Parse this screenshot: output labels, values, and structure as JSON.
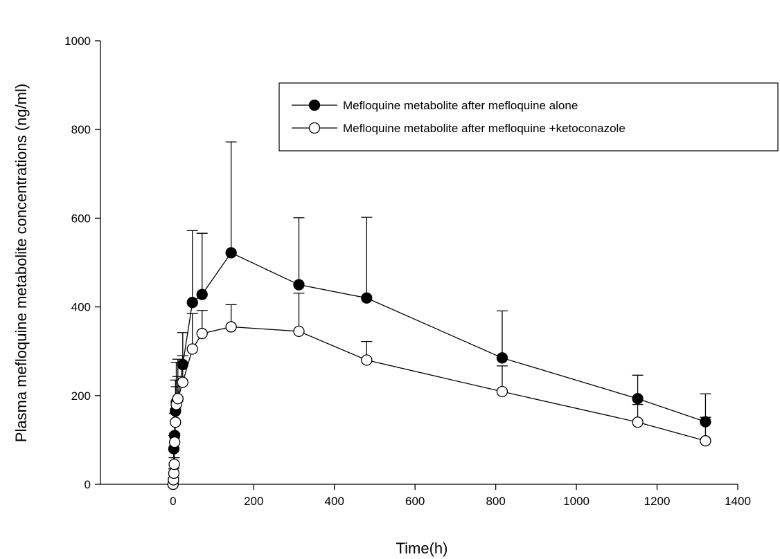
{
  "chart_data": {
    "type": "line",
    "x_label": "Time(h)",
    "y_label": "Plasma mefloquine metabolite concentrations (ng/ml)",
    "xlim": [
      -180,
      1400
    ],
    "xticks": [
      0,
      200,
      400,
      600,
      800,
      1000,
      1200,
      1400
    ],
    "ylim": [
      0,
      1000
    ],
    "yticks": [
      0,
      200,
      400,
      600,
      800,
      1000
    ],
    "legend": "upper right",
    "series": [
      {
        "name": "Mefloquine metabolite after mefloquine alone",
        "color": "#000000",
        "marker": "filled",
        "x": [
          0,
          2,
          4,
          6,
          8,
          12,
          24,
          48,
          72,
          144,
          312,
          480,
          816,
          1152,
          1320
        ],
        "values": [
          0,
          80,
          110,
          165,
          185,
          192,
          270,
          410,
          428,
          522,
          450,
          420,
          285,
          193,
          141
        ],
        "errors": [
          0,
          30,
          50,
          70,
          90,
          90,
          72,
          162,
          138,
          250,
          151,
          182,
          106,
          53,
          63
        ]
      },
      {
        "name": "Mefloquine metabolite after mefloquine +ketoconazole",
        "color": "#000000",
        "marker": "open",
        "x": [
          0,
          1,
          2,
          3,
          4,
          6,
          8,
          12,
          24,
          48,
          72,
          144,
          312,
          480,
          816,
          1152,
          1320
        ],
        "values": [
          0,
          10,
          25,
          45,
          95,
          140,
          180,
          193,
          230,
          305,
          340,
          355,
          345,
          280,
          209,
          140,
          98
        ],
        "errors": [
          0,
          5,
          10,
          15,
          20,
          30,
          40,
          50,
          60,
          80,
          52,
          50,
          86,
          42,
          58,
          40,
          53
        ]
      }
    ]
  }
}
